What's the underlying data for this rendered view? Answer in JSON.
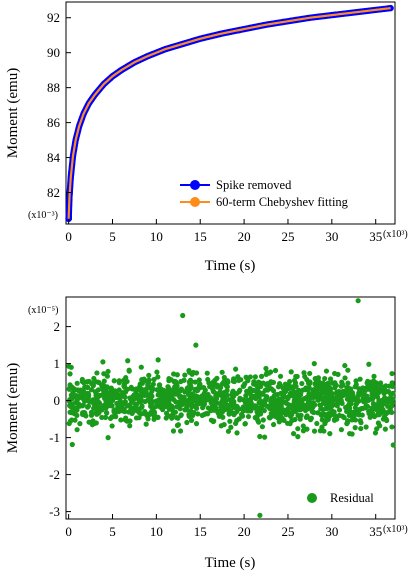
{
  "chart_data": [
    {
      "type": "line",
      "xlabel": "Time (s)",
      "ylabel": "Moment (emu)",
      "x_multiplier": "(x10³)",
      "y_multiplier": "(x10⁻³)",
      "xlim": [
        -0.3,
        37.2
      ],
      "ylim": [
        80.2,
        92.9
      ],
      "x_ticks": [
        0,
        5,
        10,
        15,
        20,
        25,
        30,
        35
      ],
      "y_ticks": [
        82,
        84,
        86,
        88,
        90,
        92
      ],
      "legend_position": "bottom-right",
      "series": [
        {
          "name": "Spike removed",
          "color": "#0000ff",
          "marker": "circle",
          "x": [
            0,
            0.1,
            0.25,
            0.5,
            0.8,
            1.2,
            1.7,
            2.3,
            3,
            4,
            5,
            6,
            7.5,
            9,
            11,
            13,
            15,
            17.5,
            20,
            22.5,
            25,
            27.5,
            30,
            32.5,
            35,
            36.7
          ],
          "y": [
            80.5,
            81.8,
            82.9,
            84.1,
            85.0,
            85.8,
            86.5,
            87.1,
            87.6,
            88.2,
            88.65,
            89.0,
            89.45,
            89.8,
            90.2,
            90.5,
            90.8,
            91.1,
            91.35,
            91.6,
            91.8,
            92.0,
            92.15,
            92.3,
            92.45,
            92.55
          ]
        },
        {
          "name": "60-term Chebyshev fitting",
          "color": "#ff8c1a",
          "x": [
            0,
            0.1,
            0.25,
            0.5,
            0.8,
            1.2,
            1.7,
            2.3,
            3,
            4,
            5,
            6,
            7.5,
            9,
            11,
            13,
            15,
            17.5,
            20,
            22.5,
            25,
            27.5,
            30,
            32.5,
            35,
            36.7
          ],
          "y": [
            80.5,
            81.8,
            82.9,
            84.1,
            85.0,
            85.8,
            86.5,
            87.1,
            87.6,
            88.2,
            88.65,
            89.0,
            89.45,
            89.8,
            90.2,
            90.5,
            90.8,
            91.1,
            91.35,
            91.6,
            91.8,
            92.0,
            92.15,
            92.3,
            92.45,
            92.55
          ]
        }
      ]
    },
    {
      "type": "scatter",
      "xlabel": "Time (s)",
      "ylabel": "Moment (emu)",
      "x_multiplier": "(x10³)",
      "y_multiplier": "(x10⁻⁵)",
      "xlim": [
        -0.3,
        37.2
      ],
      "ylim": [
        -3.2,
        2.8
      ],
      "x_ticks": [
        0,
        5,
        10,
        15,
        20,
        25,
        30,
        35
      ],
      "y_ticks": [
        -3,
        -2,
        -1,
        0,
        1,
        2
      ],
      "legend_position": "bottom-right",
      "series": [
        {
          "name": "Residual",
          "color": "#1a9a1a",
          "x_range": [
            0,
            37
          ],
          "point_count": 1400,
          "core_spread": 0.55,
          "outliers": [
            {
              "x": 33,
              "y": 2.7
            },
            {
              "x": 13,
              "y": 2.3
            },
            {
              "x": 21.8,
              "y": -3.1
            },
            {
              "x": 14.5,
              "y": 1.5
            },
            {
              "x": 0.3,
              "y": 0.9
            },
            {
              "x": 37,
              "y": -1.2
            },
            {
              "x": 10.2,
              "y": 1.1
            },
            {
              "x": 28,
              "y": 1.0
            },
            {
              "x": 4.5,
              "y": -1.0
            }
          ]
        }
      ]
    }
  ]
}
